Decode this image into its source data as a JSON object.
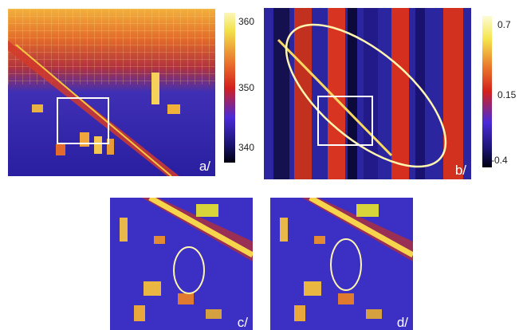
{
  "panels": {
    "a": {
      "label": "a/"
    },
    "b": {
      "label": "b/"
    },
    "c": {
      "label": "c/"
    },
    "d": {
      "label": "d/"
    }
  },
  "colorbar_a": {
    "ticks": [
      "360",
      "350",
      "340"
    ]
  },
  "colorbar_b": {
    "ticks": [
      "0.7",
      "0.15",
      "-0.4"
    ]
  },
  "colors": {
    "low": "#1a1470",
    "mid_low": "#3b2fd9",
    "mid": "#e0301c",
    "high": "#f6e94a",
    "marker": "#fff6b0"
  }
}
